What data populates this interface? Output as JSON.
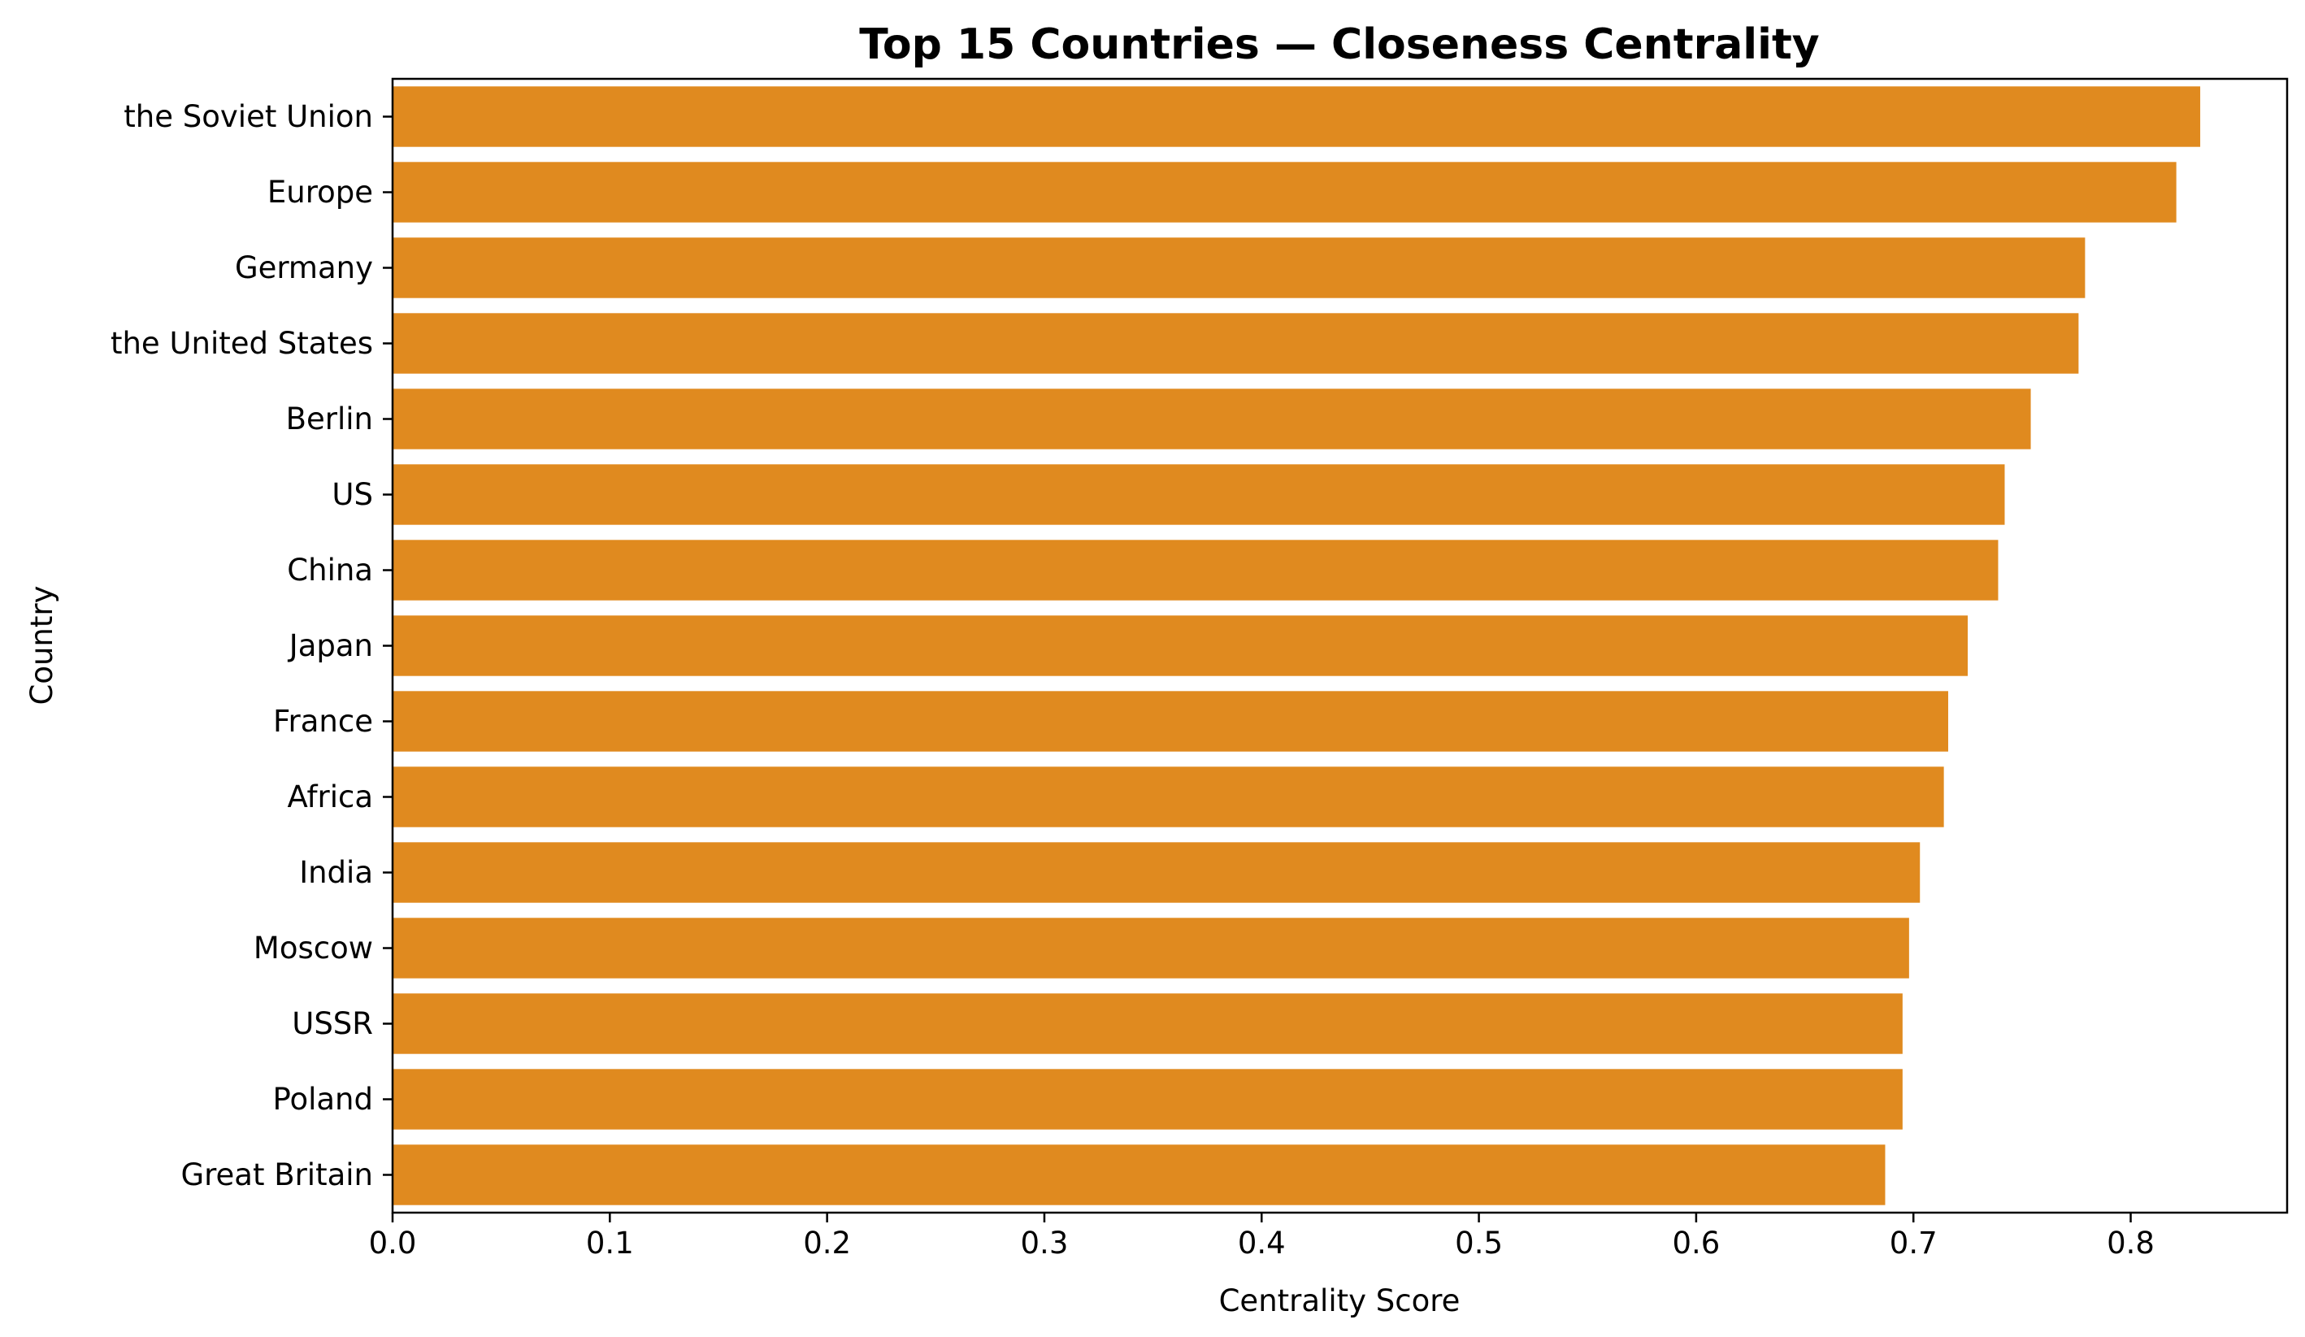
{
  "chart_data": {
    "type": "bar",
    "orientation": "horizontal",
    "title": "Top 15 Countries — Closeness Centrality",
    "xlabel": "Centrality Score",
    "ylabel": "Country",
    "categories": [
      "the Soviet Union",
      "Europe",
      "Germany",
      "the United States",
      "Berlin",
      "US",
      "China",
      "Japan",
      "France",
      "Africa",
      "India",
      "Moscow",
      "USSR",
      "Poland",
      "Great Britain"
    ],
    "values": [
      0.832,
      0.821,
      0.779,
      0.776,
      0.754,
      0.742,
      0.739,
      0.725,
      0.716,
      0.714,
      0.703,
      0.698,
      0.695,
      0.695,
      0.687
    ],
    "xlim": [
      0,
      0.872
    ],
    "xticks": [
      0.0,
      0.1,
      0.2,
      0.3,
      0.4,
      0.5,
      0.6,
      0.7,
      0.8
    ],
    "xtick_labels": [
      "0.0",
      "0.1",
      "0.2",
      "0.3",
      "0.4",
      "0.5",
      "0.6",
      "0.7",
      "0.8"
    ],
    "grid": false,
    "legend": "none",
    "bar_color": "#e08a1f"
  }
}
